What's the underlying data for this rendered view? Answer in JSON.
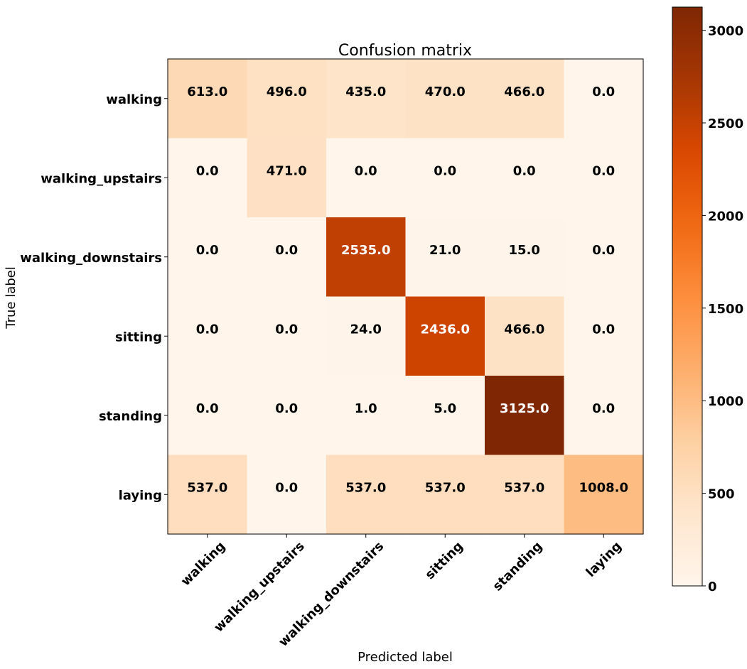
{
  "chart_data": {
    "type": "heatmap",
    "title": "Confusion matrix",
    "xlabel": "Predicted label",
    "ylabel": "True label",
    "x_categories": [
      "walking",
      "walking_upstairs",
      "walking_downstairs",
      "sitting",
      "standing",
      "laying"
    ],
    "y_categories": [
      "walking",
      "walking_upstairs",
      "walking_downstairs",
      "sitting",
      "standing",
      "laying"
    ],
    "values": [
      [
        613.0,
        496.0,
        435.0,
        470.0,
        466.0,
        0.0
      ],
      [
        0.0,
        471.0,
        0.0,
        0.0,
        0.0,
        0.0
      ],
      [
        0.0,
        0.0,
        2535.0,
        21.0,
        15.0,
        0.0
      ],
      [
        0.0,
        0.0,
        24.0,
        2436.0,
        466.0,
        0.0
      ],
      [
        0.0,
        0.0,
        1.0,
        5.0,
        3125.0,
        0.0
      ],
      [
        537.0,
        0.0,
        537.0,
        537.0,
        537.0,
        1008.0
      ]
    ],
    "cell_labels": [
      [
        "613.0",
        "496.0",
        "435.0",
        "470.0",
        "466.0",
        "0.0"
      ],
      [
        "0.0",
        "471.0",
        "0.0",
        "0.0",
        "0.0",
        "0.0"
      ],
      [
        "0.0",
        "0.0",
        "2535.0",
        "21.0",
        "15.0",
        "0.0"
      ],
      [
        "0.0",
        "0.0",
        "24.0",
        "2436.0",
        "466.0",
        "0.0"
      ],
      [
        "0.0",
        "0.0",
        "1.0",
        "5.0",
        "3125.0",
        "0.0"
      ],
      [
        "537.0",
        "0.0",
        "537.0",
        "537.0",
        "537.0",
        "1008.0"
      ]
    ],
    "colormap": "Oranges",
    "colorbar": {
      "min": 0,
      "max": 3125,
      "ticks": [
        0,
        500,
        1000,
        1500,
        2000,
        2500,
        3000
      ],
      "tick_labels": [
        "0",
        "500",
        "1000",
        "1500",
        "2000",
        "2500",
        "3000"
      ]
    },
    "text_colors": {
      "dark": "#000000",
      "light": "#ffffff"
    },
    "grid": false
  }
}
